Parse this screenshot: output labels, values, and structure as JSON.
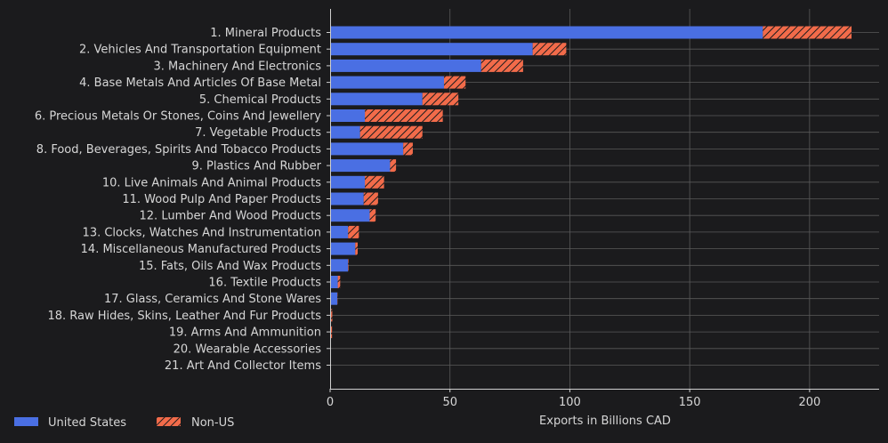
{
  "chart_data": {
    "type": "bar",
    "orientation": "horizontal",
    "stacked": true,
    "categories": [
      "1. Mineral Products",
      "2. Vehicles And Transportation Equipment",
      "3. Machinery And Electronics",
      "4. Base Metals And Articles Of Base Metal",
      "5. Chemical Products",
      "6. Precious Metals Or Stones, Coins And Jewellery",
      "7. Vegetable Products",
      "8. Food, Beverages, Spirits And Tobacco Products",
      "9. Plastics And Rubber",
      "10. Live Animals And Animal Products",
      "11. Wood Pulp And Paper Products",
      "12. Lumber And Wood Products",
      "13. Clocks, Watches And Instrumentation",
      "14. Miscellaneous Manufactured Products",
      "15. Fats, Oils And Wax Products",
      "16. Textile Products",
      "17. Glass, Ceramics And Stone Wares",
      "18. Raw Hides, Skins, Leather And Fur Products",
      "19. Arms And Ammunition",
      "20. Wearable Accessories",
      "21. Art And Collector Items"
    ],
    "series": [
      {
        "name": "United States",
        "color": "#4a6fe3",
        "pattern": "solid",
        "values": [
          180.5,
          84.5,
          63,
          47.5,
          38.5,
          14.5,
          12.5,
          30.5,
          25,
          14.5,
          14,
          16.5,
          7.5,
          10.5,
          7.5,
          3.2,
          3,
          0.4,
          0.3,
          0.1,
          0.05
        ]
      },
      {
        "name": "Non-US",
        "color": "#f26b4a",
        "pattern": "hatched",
        "values": [
          37,
          14,
          17.5,
          9,
          15,
          32.5,
          26,
          4,
          2.5,
          8,
          6,
          2.5,
          4.5,
          1,
          0.2,
          1,
          0.1,
          0.5,
          0.5,
          0.1,
          0.05
        ]
      }
    ],
    "xlabel": "Exports in Billions CAD",
    "xlim": [
      0,
      229
    ],
    "xticks": [
      "0",
      "50",
      "100",
      "150",
      "200"
    ],
    "grid": true,
    "legend_position": "bottom-left"
  }
}
